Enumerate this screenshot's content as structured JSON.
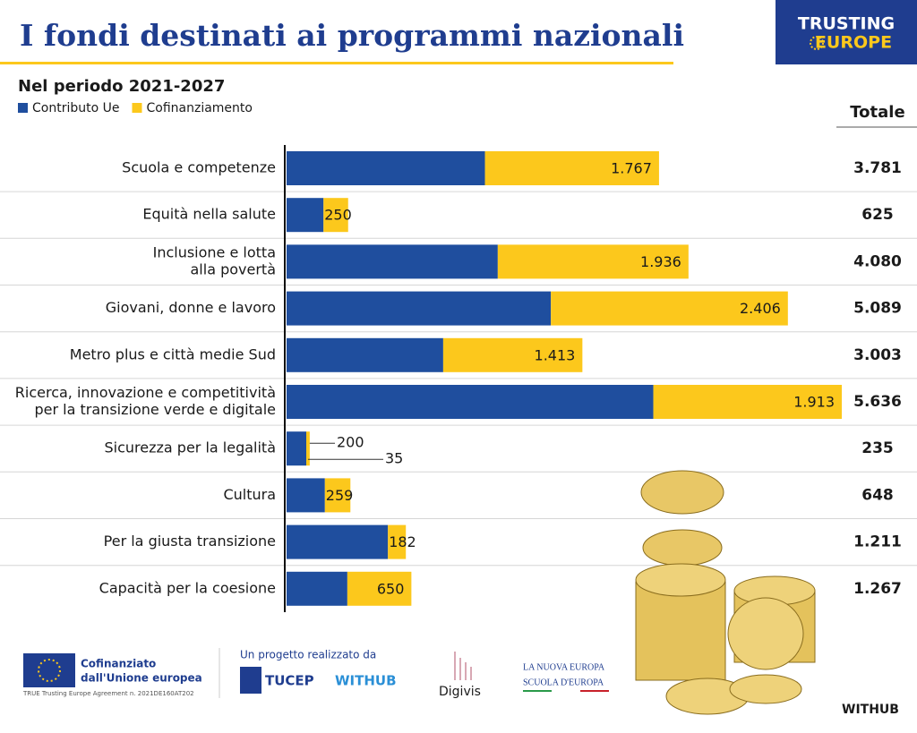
{
  "chart_data": {
    "type": "stacked-barh",
    "title": "I fondi destinati ai programmi nazionali",
    "subtitle": "Nel periodo 2021-2027",
    "brand": [
      "TRUSTING",
      "EUROPE"
    ],
    "categories": [
      [
        "Scuola e competenze"
      ],
      [
        "Equità nella salute"
      ],
      [
        "Inclusione e lotta",
        "alla povertà"
      ],
      [
        "Giovani, donne e lavoro"
      ],
      [
        "Metro plus e città medie Sud"
      ],
      [
        "Ricerca, innovazione e competitività",
        "per la transizione verde e digitale"
      ],
      [
        "Sicurezza per la legalità"
      ],
      [
        "Cultura"
      ],
      [
        "Per la giusta transizione"
      ],
      [
        "Capacità per la coesione"
      ]
    ],
    "series": [
      {
        "name": "Contributo Ue",
        "color": "#1f4e9e",
        "values": [
          2014,
          375,
          2144,
          2683,
          1590,
          3723,
          200,
          389,
          1029,
          617
        ],
        "value_labels": [
          null,
          null,
          null,
          null,
          null,
          null,
          "200",
          null,
          null,
          null
        ]
      },
      {
        "name": "Cofinanziamento",
        "color": "#fcc81c",
        "values": [
          1767,
          250,
          1936,
          2406,
          1413,
          1913,
          35,
          259,
          182,
          650
        ],
        "value_labels": [
          "1.767",
          "250",
          "1.936",
          "2.406",
          "1.413",
          "1.913",
          "35",
          "259",
          "182",
          "650"
        ]
      }
    ],
    "totals": {
      "title": "Totale",
      "values": [
        3781,
        625,
        4080,
        5089,
        3003,
        5636,
        235,
        648,
        1211,
        1267
      ],
      "value_labels": [
        "3.781",
        "625",
        "4.080",
        "5.089",
        "3.003",
        "5.636",
        "235",
        "648",
        "1.211",
        "1.267"
      ]
    },
    "footer": {
      "eu": [
        "Cofinanziato",
        "dall'Unione europea"
      ],
      "agreement": "TRUE Trusting Europe Agreement n. 2021DE160AT202",
      "project": "Un progetto realizzato da",
      "partners": [
        "TUCEP",
        "WITHUB",
        "Digivis",
        "LA NUOVA EUROPA",
        "SCUOLA D'EUROPA"
      ],
      "credit": "WITHUB"
    }
  }
}
